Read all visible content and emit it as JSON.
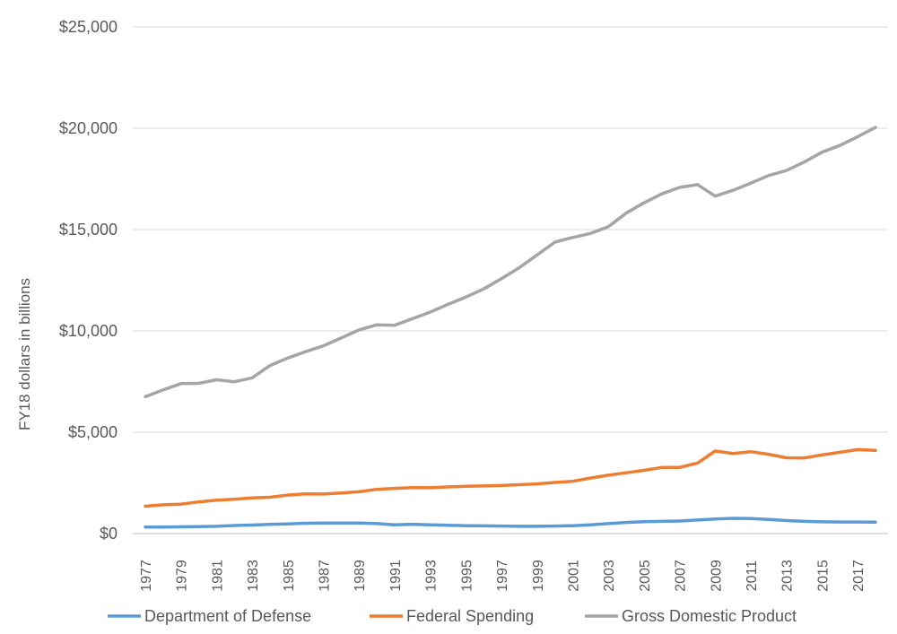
{
  "chart_data": {
    "type": "line",
    "title": "",
    "xlabel": "",
    "ylabel": "FY18 dollars in billions",
    "ylim": [
      0,
      25000
    ],
    "yticks": [
      {
        "value": 0,
        "label": "$0"
      },
      {
        "value": 5000,
        "label": "$5,000"
      },
      {
        "value": 10000,
        "label": "$10,000"
      },
      {
        "value": 15000,
        "label": "$15,000"
      },
      {
        "value": 20000,
        "label": "$20,000"
      },
      {
        "value": 25000,
        "label": "$25,000"
      }
    ],
    "x": [
      1977,
      1978,
      1979,
      1980,
      1981,
      1982,
      1983,
      1984,
      1985,
      1986,
      1987,
      1988,
      1989,
      1990,
      1991,
      1992,
      1993,
      1994,
      1995,
      1996,
      1997,
      1998,
      1999,
      2000,
      2001,
      2002,
      2003,
      2004,
      2005,
      2006,
      2007,
      2008,
      2009,
      2010,
      2011,
      2012,
      2013,
      2014,
      2015,
      2016,
      2017,
      2018
    ],
    "xtick_labels": [
      "1977",
      "1979",
      "1981",
      "1983",
      "1985",
      "1987",
      "1989",
      "1991",
      "1993",
      "1995",
      "1997",
      "1999",
      "2001",
      "2003",
      "2005",
      "2007",
      "2009",
      "2011",
      "2013",
      "2015",
      "2017"
    ],
    "grid": true,
    "legend_position": "bottom",
    "series": [
      {
        "name": "Department of Defense",
        "color": "#5B9BD5",
        "values": [
          320,
          320,
          330,
          340,
          360,
          400,
          420,
          450,
          480,
          510,
          520,
          520,
          520,
          490,
          430,
          460,
          430,
          410,
          390,
          380,
          370,
          360,
          360,
          370,
          390,
          430,
          490,
          550,
          590,
          600,
          620,
          670,
          720,
          750,
          740,
          700,
          640,
          600,
          580,
          570,
          570,
          560
        ]
      },
      {
        "name": "Federal Spending",
        "color": "#ED7D31",
        "values": [
          1350,
          1420,
          1450,
          1560,
          1650,
          1690,
          1760,
          1790,
          1900,
          1960,
          1950,
          2000,
          2060,
          2180,
          2230,
          2270,
          2260,
          2300,
          2330,
          2350,
          2370,
          2410,
          2450,
          2520,
          2580,
          2740,
          2880,
          3000,
          3120,
          3260,
          3260,
          3480,
          4070,
          3950,
          4040,
          3910,
          3740,
          3730,
          3880,
          4010,
          4140,
          4100
        ]
      },
      {
        "name": "Gross Domestic Product",
        "color": "#A5A5A5",
        "values": [
          6750,
          7090,
          7400,
          7410,
          7590,
          7490,
          7680,
          8290,
          8660,
          8980,
          9260,
          9650,
          10050,
          10300,
          10280,
          10600,
          10930,
          11310,
          11670,
          12070,
          12580,
          13120,
          13750,
          14380,
          14610,
          14810,
          15140,
          15810,
          16320,
          16760,
          17080,
          17220,
          16650,
          16940,
          17290,
          17670,
          17910,
          18330,
          18820,
          19150,
          19580,
          20040
        ]
      }
    ]
  }
}
